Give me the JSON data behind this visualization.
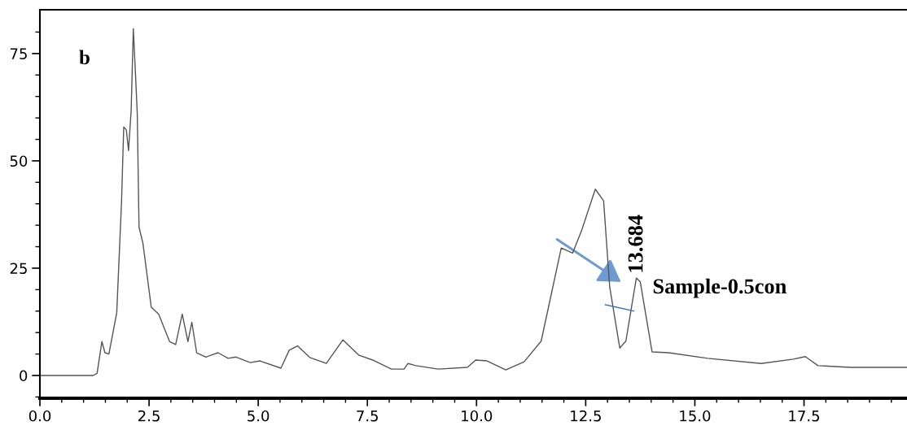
{
  "chart_data": {
    "type": "line",
    "x": [
      0,
      1.22,
      1.31,
      1.42,
      1.49,
      1.58,
      1.76,
      1.87,
      1.92,
      1.98,
      2.03,
      2.09,
      2.14,
      2.19,
      2.23,
      2.27,
      2.36,
      2.55,
      2.72,
      2.97,
      3.11,
      3.26,
      3.39,
      3.48,
      3.59,
      3.8,
      4.08,
      4.31,
      4.49,
      4.82,
      5.04,
      5.52,
      5.71,
      5.9,
      6.18,
      6.56,
      6.94,
      7.31,
      7.62,
      8.05,
      8.34,
      8.43,
      8.61,
      9.12,
      9.79,
      9.98,
      10.24,
      10.67,
      11.09,
      11.48,
      11.94,
      12.2,
      12.41,
      12.72,
      12.91,
      13.05,
      13.28,
      13.42,
      13.66,
      13.75,
      14.02,
      14.4,
      15.29,
      16.52,
      17.26,
      17.53,
      17.82,
      18.57,
      19.89
    ],
    "series": [
      {
        "color": "#555555",
        "values": [
          0,
          0,
          0.5,
          7.9,
          5.3,
          5,
          14.6,
          40.5,
          57.9,
          57.2,
          52.4,
          61.7,
          80.8,
          70.1,
          61,
          34.6,
          30.8,
          15.9,
          14.3,
          7.9,
          7.2,
          14.3,
          7.9,
          12.4,
          5.3,
          4.3,
          5.3,
          4,
          4.3,
          3,
          3.4,
          1.7,
          5.9,
          6.9,
          4.2,
          2.8,
          8.3,
          4.7,
          3.6,
          1.5,
          1.5,
          2.8,
          2.3,
          1.5,
          1.9,
          3.6,
          3.4,
          1.3,
          3.2,
          8,
          29.7,
          28.5,
          33.9,
          43.4,
          40.7,
          20.6,
          6.4,
          8,
          22.7,
          21.8,
          5.5,
          5.3,
          4,
          2.8,
          3.8,
          4.4,
          2.3,
          1.9,
          1.9
        ]
      }
    ],
    "xlim": [
      0,
      19.9
    ],
    "ylim": [
      -5.3,
      85.2
    ],
    "xticks": [
      {
        "value": 0,
        "label": "0.0"
      },
      {
        "value": 2.5,
        "label": "2.5"
      },
      {
        "value": 5,
        "label": "5.0"
      },
      {
        "value": 7.5,
        "label": "7.5"
      },
      {
        "value": 10,
        "label": "10.0"
      },
      {
        "value": 12.5,
        "label": "12.5"
      },
      {
        "value": 15,
        "label": "15.0"
      },
      {
        "value": 17.5,
        "label": "17.5"
      },
      {
        "value": 0.5,
        "label": null
      },
      {
        "value": 1,
        "label": null
      },
      {
        "value": 1.5,
        "label": null
      },
      {
        "value": 2,
        "label": null
      },
      {
        "value": 3,
        "label": null
      },
      {
        "value": 3.5,
        "label": null
      },
      {
        "value": 4,
        "label": null
      },
      {
        "value": 4.5,
        "label": null
      },
      {
        "value": 5.5,
        "label": null
      },
      {
        "value": 6,
        "label": null
      },
      {
        "value": 6.5,
        "label": null
      },
      {
        "value": 7,
        "label": null
      },
      {
        "value": 8,
        "label": null
      },
      {
        "value": 8.5,
        "label": null
      },
      {
        "value": 9,
        "label": null
      },
      {
        "value": 9.5,
        "label": null
      },
      {
        "value": 10.5,
        "label": null
      },
      {
        "value": 11,
        "label": null
      },
      {
        "value": 11.5,
        "label": null
      },
      {
        "value": 12,
        "label": null
      },
      {
        "value": 13,
        "label": null
      },
      {
        "value": 13.5,
        "label": null
      },
      {
        "value": 14,
        "label": null
      },
      {
        "value": 14.5,
        "label": null
      },
      {
        "value": 15.5,
        "label": null
      },
      {
        "value": 16,
        "label": null
      },
      {
        "value": 16.5,
        "label": null
      },
      {
        "value": 17,
        "label": null
      },
      {
        "value": 18,
        "label": null
      },
      {
        "value": 18.5,
        "label": null
      },
      {
        "value": 19,
        "label": null
      },
      {
        "value": 19.5,
        "label": null
      }
    ],
    "yticks": [
      0,
      25,
      50,
      75,
      {
        "value": -5,
        "label": null
      },
      {
        "value": 5,
        "label": null
      },
      {
        "value": 10,
        "label": null
      },
      {
        "value": 15,
        "label": null
      },
      {
        "value": 20,
        "label": null
      },
      {
        "value": 30,
        "label": null
      },
      {
        "value": 35,
        "label": null
      },
      {
        "value": 40,
        "label": null
      },
      {
        "value": 45,
        "label": null
      },
      {
        "value": 55,
        "label": null
      },
      {
        "value": 60,
        "label": null
      },
      {
        "value": 65,
        "label": null
      },
      {
        "value": 70,
        "label": null
      },
      {
        "value": 80,
        "label": null
      }
    ],
    "annotations": [
      "b",
      {
        "text": "13.684",
        "x": 13.684,
        "y": 22.7
      },
      "Sample-0.5con"
    ],
    "grid": false,
    "legend": false,
    "marker": "none",
    "line_style": "solid"
  }
}
